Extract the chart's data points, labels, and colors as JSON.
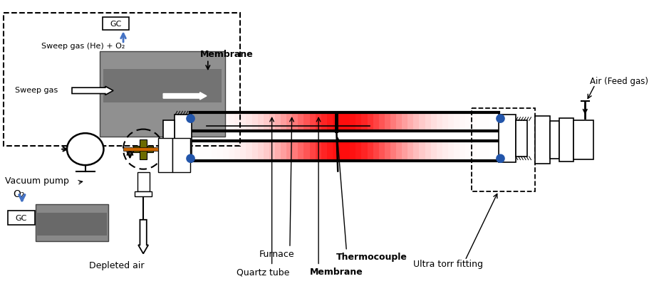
{
  "bg": "#ffffff",
  "black": "#000000",
  "blue": "#4472C4",
  "olive": "#6B6B00",
  "orange_brown": "#CC6600",
  "blue_seal": "#2255AA",
  "photo_gray": "#909090",
  "labels": {
    "GC_top": "GC",
    "sweep_he": "Sweep gas (He) + O₂",
    "sweep_gas": "Sweep gas",
    "membrane_top": "Membrane",
    "quartz_tube": "Quartz tube",
    "membrane_main": "Membrane",
    "furnace": "Furnace",
    "thermocouple": "Thermocouple",
    "vacuum_pump": "Vacuum pump",
    "O2": "O₂",
    "GC_bot": "GC",
    "depleted": "Depleted air",
    "ultra_torr": "Ultra torr fitting",
    "air_feed": "Air (Feed gas)"
  }
}
